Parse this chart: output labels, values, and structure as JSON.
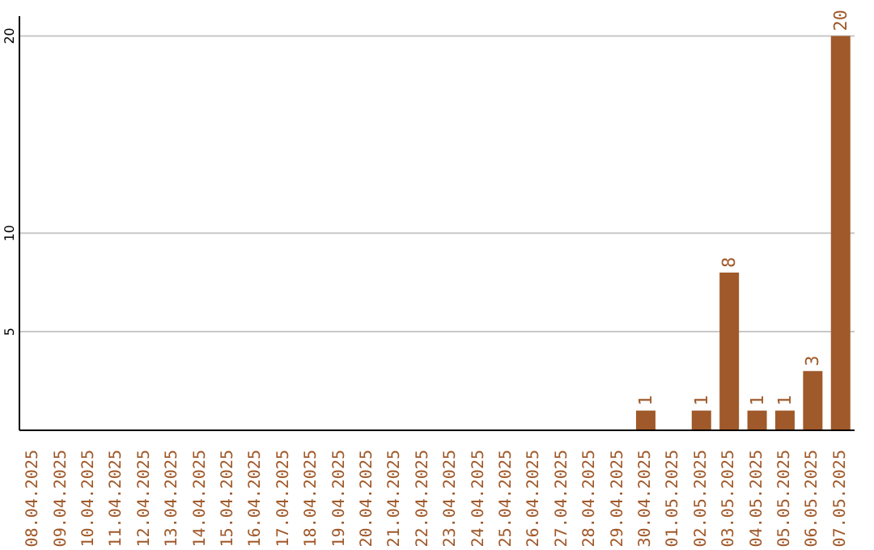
{
  "chart_data": {
    "type": "bar",
    "categories": [
      "08.04.2025",
      "09.04.2025",
      "10.04.2025",
      "11.04.2025",
      "12.04.2025",
      "13.04.2025",
      "14.04.2025",
      "15.04.2025",
      "16.04.2025",
      "17.04.2025",
      "18.04.2025",
      "19.04.2025",
      "20.04.2025",
      "21.04.2025",
      "22.04.2025",
      "23.04.2025",
      "24.04.2025",
      "25.04.2025",
      "26.04.2025",
      "27.04.2025",
      "28.04.2025",
      "29.04.2025",
      "30.04.2025",
      "01.05.2025",
      "02.05.2025",
      "03.05.2025",
      "04.05.2025",
      "05.05.2025",
      "06.05.2025",
      "07.05.2025"
    ],
    "values": [
      0,
      0,
      0,
      0,
      0,
      0,
      0,
      0,
      0,
      0,
      0,
      0,
      0,
      0,
      0,
      0,
      0,
      0,
      0,
      0,
      0,
      0,
      1,
      0,
      1,
      8,
      1,
      1,
      3,
      20
    ],
    "value_labels": [
      null,
      null,
      null,
      null,
      null,
      null,
      null,
      null,
      null,
      null,
      null,
      null,
      null,
      null,
      null,
      null,
      null,
      null,
      null,
      null,
      null,
      null,
      "1",
      null,
      "1",
      "8",
      "1",
      "1",
      "3",
      "20"
    ],
    "color": "#a0592a",
    "ylim": [
      0,
      21
    ],
    "yticks": [
      5,
      10,
      20
    ],
    "grid": "y"
  }
}
